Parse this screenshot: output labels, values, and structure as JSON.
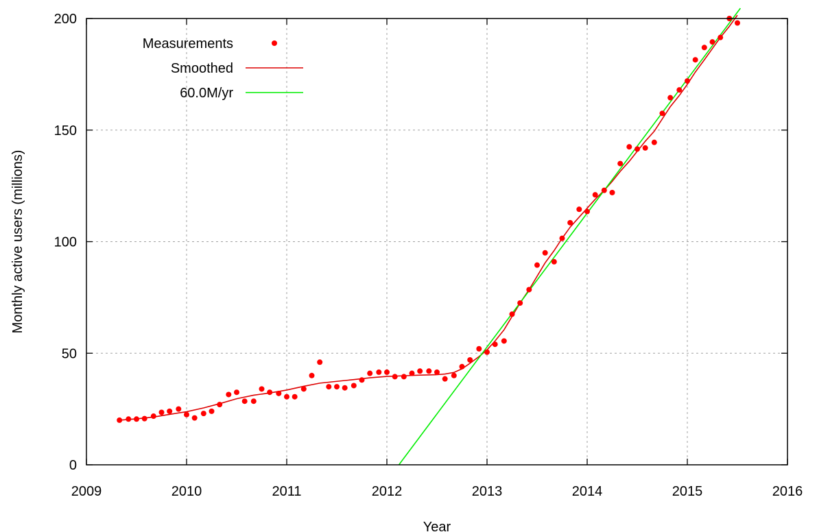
{
  "chart_data": {
    "type": "scatter",
    "xlabel": "Year",
    "ylabel": "Monthly active users (millions)",
    "xlim": [
      2009,
      2016
    ],
    "ylim": [
      0,
      200
    ],
    "xticks": [
      2009,
      2010,
      2011,
      2012,
      2013,
      2014,
      2015,
      2016
    ],
    "yticks": [
      0,
      50,
      100,
      150,
      200
    ],
    "grid": true,
    "legend_position": "top-left",
    "series": [
      {
        "name": "Measurements",
        "kind": "points",
        "color": "#ff0000",
        "x": [
          2009.33,
          2009.42,
          2009.5,
          2009.58,
          2009.67,
          2009.75,
          2009.83,
          2009.92,
          2010.0,
          2010.08,
          2010.17,
          2010.25,
          2010.33,
          2010.42,
          2010.5,
          2010.58,
          2010.67,
          2010.75,
          2010.83,
          2010.92,
          2011.0,
          2011.08,
          2011.17,
          2011.25,
          2011.33,
          2011.42,
          2011.5,
          2011.58,
          2011.67,
          2011.75,
          2011.83,
          2011.92,
          2012.0,
          2012.08,
          2012.17,
          2012.25,
          2012.33,
          2012.42,
          2012.5,
          2012.58,
          2012.67,
          2012.75,
          2012.83,
          2012.92,
          2013.0,
          2013.08,
          2013.17,
          2013.25,
          2013.33,
          2013.42,
          2013.5,
          2013.58,
          2013.67,
          2013.75,
          2013.83,
          2013.92,
          2014.0,
          2014.08,
          2014.17,
          2014.25,
          2014.33,
          2014.42,
          2014.5,
          2014.58,
          2014.67,
          2014.75,
          2014.83,
          2014.92,
          2015.0,
          2015.08,
          2015.17,
          2015.25,
          2015.33,
          2015.42,
          2015.5
        ],
        "y": [
          20,
          20.5,
          20.5,
          20.7,
          21.8,
          23.5,
          24,
          25,
          22.5,
          21,
          23,
          24,
          27,
          31.5,
          32.5,
          28.5,
          28.5,
          34,
          32.5,
          32,
          30.5,
          30.5,
          34,
          40,
          46,
          35,
          35,
          34.5,
          35.5,
          38,
          41,
          41.5,
          41.5,
          39.5,
          39.5,
          41,
          42,
          42,
          41.5,
          38.5,
          40,
          44,
          47,
          52,
          50.5,
          54,
          55.5,
          67.5,
          72.5,
          78.5,
          89.5,
          95,
          91,
          101.5,
          108.5,
          114.5,
          113.5,
          121,
          123,
          122,
          135,
          142.5,
          141.5,
          142,
          144.5,
          157.5,
          164.5,
          168,
          172,
          181.5,
          187,
          189.5,
          191.5,
          200,
          198
        ]
      },
      {
        "name": "Smoothed",
        "kind": "line",
        "color": "#dd0000",
        "x": [
          2009.33,
          2009.5,
          2009.67,
          2009.83,
          2010.0,
          2010.17,
          2010.33,
          2010.5,
          2010.67,
          2010.83,
          2011.0,
          2011.17,
          2011.33,
          2011.5,
          2011.67,
          2011.83,
          2012.0,
          2012.17,
          2012.33,
          2012.5,
          2012.58,
          2012.67,
          2012.75,
          2012.83,
          2012.92,
          2013.0,
          2013.08,
          2013.17,
          2013.25,
          2013.33,
          2013.42,
          2013.5,
          2013.58,
          2013.67,
          2013.75,
          2013.83,
          2013.92,
          2014.0,
          2014.08,
          2014.17,
          2014.25,
          2014.33,
          2014.42,
          2014.5,
          2014.58,
          2014.67,
          2014.75,
          2014.83,
          2014.92,
          2015.0,
          2015.08,
          2015.17,
          2015.25,
          2015.33,
          2015.42,
          2015.5
        ],
        "y": [
          20,
          20.6,
          21.4,
          22.6,
          23.8,
          25.5,
          27.4,
          29.6,
          31.2,
          32.2,
          33.5,
          35.2,
          36.6,
          37.4,
          38.2,
          39.0,
          39.6,
          39.9,
          40.2,
          40.4,
          40.7,
          41.4,
          43.0,
          45.5,
          48.5,
          51.5,
          55.5,
          60.5,
          66.5,
          72.5,
          78.5,
          84.5,
          90.5,
          96.0,
          101.5,
          106.5,
          111.0,
          115.0,
          119.0,
          123.0,
          127.0,
          131.5,
          136.0,
          140.5,
          145.0,
          149.5,
          155.0,
          160.5,
          165.5,
          170.5,
          176.0,
          181.5,
          186.5,
          191.5,
          196.5,
          201.5
        ]
      },
      {
        "name": "60.0M/yr",
        "kind": "line",
        "color": "#00ee00",
        "x": [
          2012.12,
          2015.53
        ],
        "y": [
          0,
          204.6
        ]
      }
    ]
  }
}
